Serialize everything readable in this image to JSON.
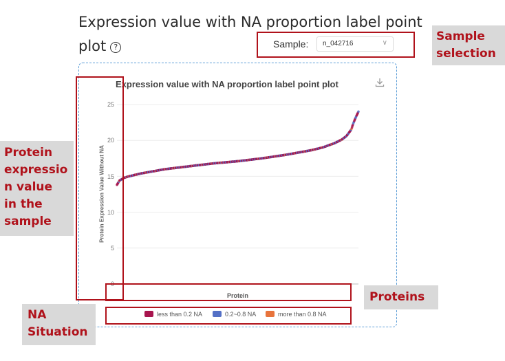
{
  "page": {
    "title_line1": "Expression value with NA proportion label point",
    "title_line2": "plot",
    "help_glyph": "?"
  },
  "sample": {
    "label": "Sample:",
    "selected": "n_042716"
  },
  "chart_data": {
    "type": "scatter",
    "title": "Expression value with NA proportion label point plot",
    "xlabel": "Protein",
    "ylabel": "Protein Expression Value Without NA",
    "ylim": [
      0,
      25
    ],
    "yticks": [
      "0",
      "5",
      "10",
      "15",
      "20",
      "25"
    ],
    "grid": true,
    "legend_position": "bottom",
    "series": [
      {
        "name": "less than 0.2 NA",
        "color": "#a8154e"
      },
      {
        "name": "0.2~0.8 NA",
        "color": "#5470c6"
      },
      {
        "name": "more than 0.8 NA",
        "color": "#e8743c"
      }
    ],
    "x_fraction": [
      0,
      0.01,
      0.03,
      0.05,
      0.1,
      0.2,
      0.3,
      0.4,
      0.5,
      0.6,
      0.7,
      0.8,
      0.85,
      0.9,
      0.93,
      0.95,
      0.97,
      0.98,
      0.99,
      1.0
    ],
    "y": [
      13.8,
      14.4,
      14.8,
      15.0,
      15.4,
      16.0,
      16.4,
      16.8,
      17.1,
      17.5,
      18.0,
      18.6,
      19.0,
      19.6,
      20.1,
      20.6,
      21.5,
      22.5,
      23.3,
      24.0
    ]
  },
  "annotations": {
    "sample_selection": "Sample\nselection",
    "protein_expression": "Protein\nexpressio\nn value\nin the\nsample",
    "proteins": "Proteins",
    "na_situation": "NA\nSituation"
  },
  "colors": {
    "annotation_text": "#b0121b",
    "annotation_bg": "#d9d9d9",
    "box_border": "#b0121b",
    "card_border": "#5a9cd6"
  },
  "icons": {
    "help": "question-circle-icon",
    "download": "download-icon",
    "select_arrow": "chevron-down-icon"
  }
}
